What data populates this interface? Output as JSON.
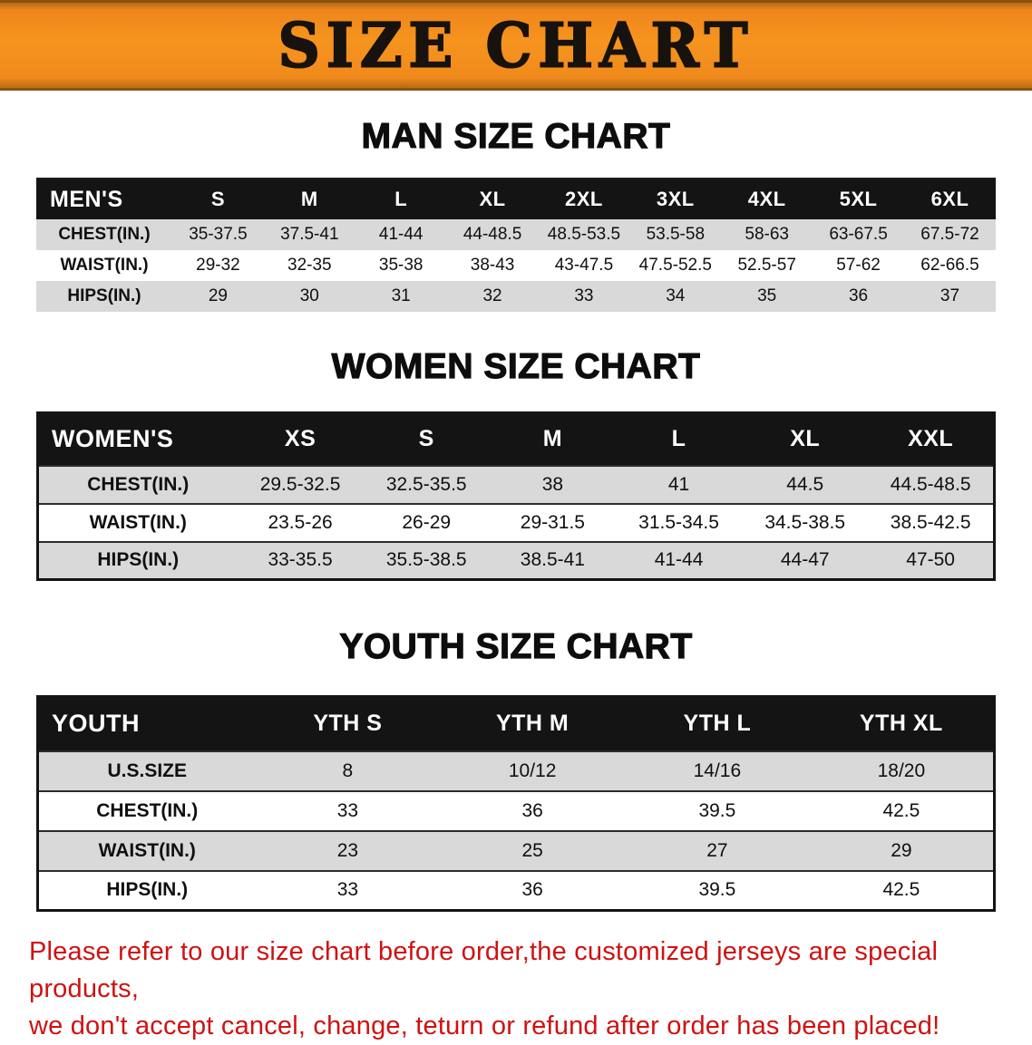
{
  "banner": {
    "title": "SIZE CHART"
  },
  "chart_data": [
    {
      "type": "table",
      "title": "MAN SIZE CHART",
      "columns": [
        "MEN'S",
        "S",
        "M",
        "L",
        "XL",
        "2XL",
        "3XL",
        "4XL",
        "5XL",
        "6XL"
      ],
      "rows": [
        [
          "CHEST(IN.)",
          "35-37.5",
          "37.5-41",
          "41-44",
          "44-48.5",
          "48.5-53.5",
          "53.5-58",
          "58-63",
          "63-67.5",
          "67.5-72"
        ],
        [
          "WAIST(IN.)",
          "29-32",
          "32-35",
          "35-38",
          "38-43",
          "43-47.5",
          "47.5-52.5",
          "52.5-57",
          "57-62",
          "62-66.5"
        ],
        [
          "HIPS(IN.)",
          "29",
          "30",
          "31",
          "32",
          "33",
          "34",
          "35",
          "36",
          "37"
        ]
      ]
    },
    {
      "type": "table",
      "title": "WOMEN SIZE CHART",
      "columns": [
        "WOMEN'S",
        "XS",
        "S",
        "M",
        "L",
        "XL",
        "XXL"
      ],
      "rows": [
        [
          "CHEST(IN.)",
          "29.5-32.5",
          "32.5-35.5",
          "38",
          "41",
          "44.5",
          "44.5-48.5"
        ],
        [
          "WAIST(IN.)",
          "23.5-26",
          "26-29",
          "29-31.5",
          "31.5-34.5",
          "34.5-38.5",
          "38.5-42.5"
        ],
        [
          "HIPS(IN.)",
          "33-35.5",
          "35.5-38.5",
          "38.5-41",
          "41-44",
          "44-47",
          "47-50"
        ]
      ]
    },
    {
      "type": "table",
      "title": "YOUTH SIZE CHART",
      "columns": [
        "YOUTH",
        "YTH S",
        "YTH M",
        "YTH L",
        "YTH XL"
      ],
      "rows": [
        [
          "U.S.SIZE",
          "8",
          "10/12",
          "14/16",
          "18/20"
        ],
        [
          "CHEST(IN.)",
          "33",
          "36",
          "39.5",
          "42.5"
        ],
        [
          "WAIST(IN.)",
          "23",
          "25",
          "27",
          "29"
        ],
        [
          "HIPS(IN.)",
          "33",
          "36",
          "39.5",
          "42.5"
        ]
      ]
    }
  ],
  "footer": {
    "line1": "Please refer to our size chart before order,the customized jerseys are special products,",
    "line2": "we don't accept cancel, change, teturn or refund after order has been placed!"
  },
  "colors": {
    "banner_bg": "#F28A1D",
    "banner_text": "#17120D",
    "table_header_bg": "#141414",
    "table_header_text": "#FFFFFF",
    "row_alt_bg": "#D9D9D9",
    "row_bg": "#FFFFFF",
    "footer_text": "#CF1212"
  }
}
